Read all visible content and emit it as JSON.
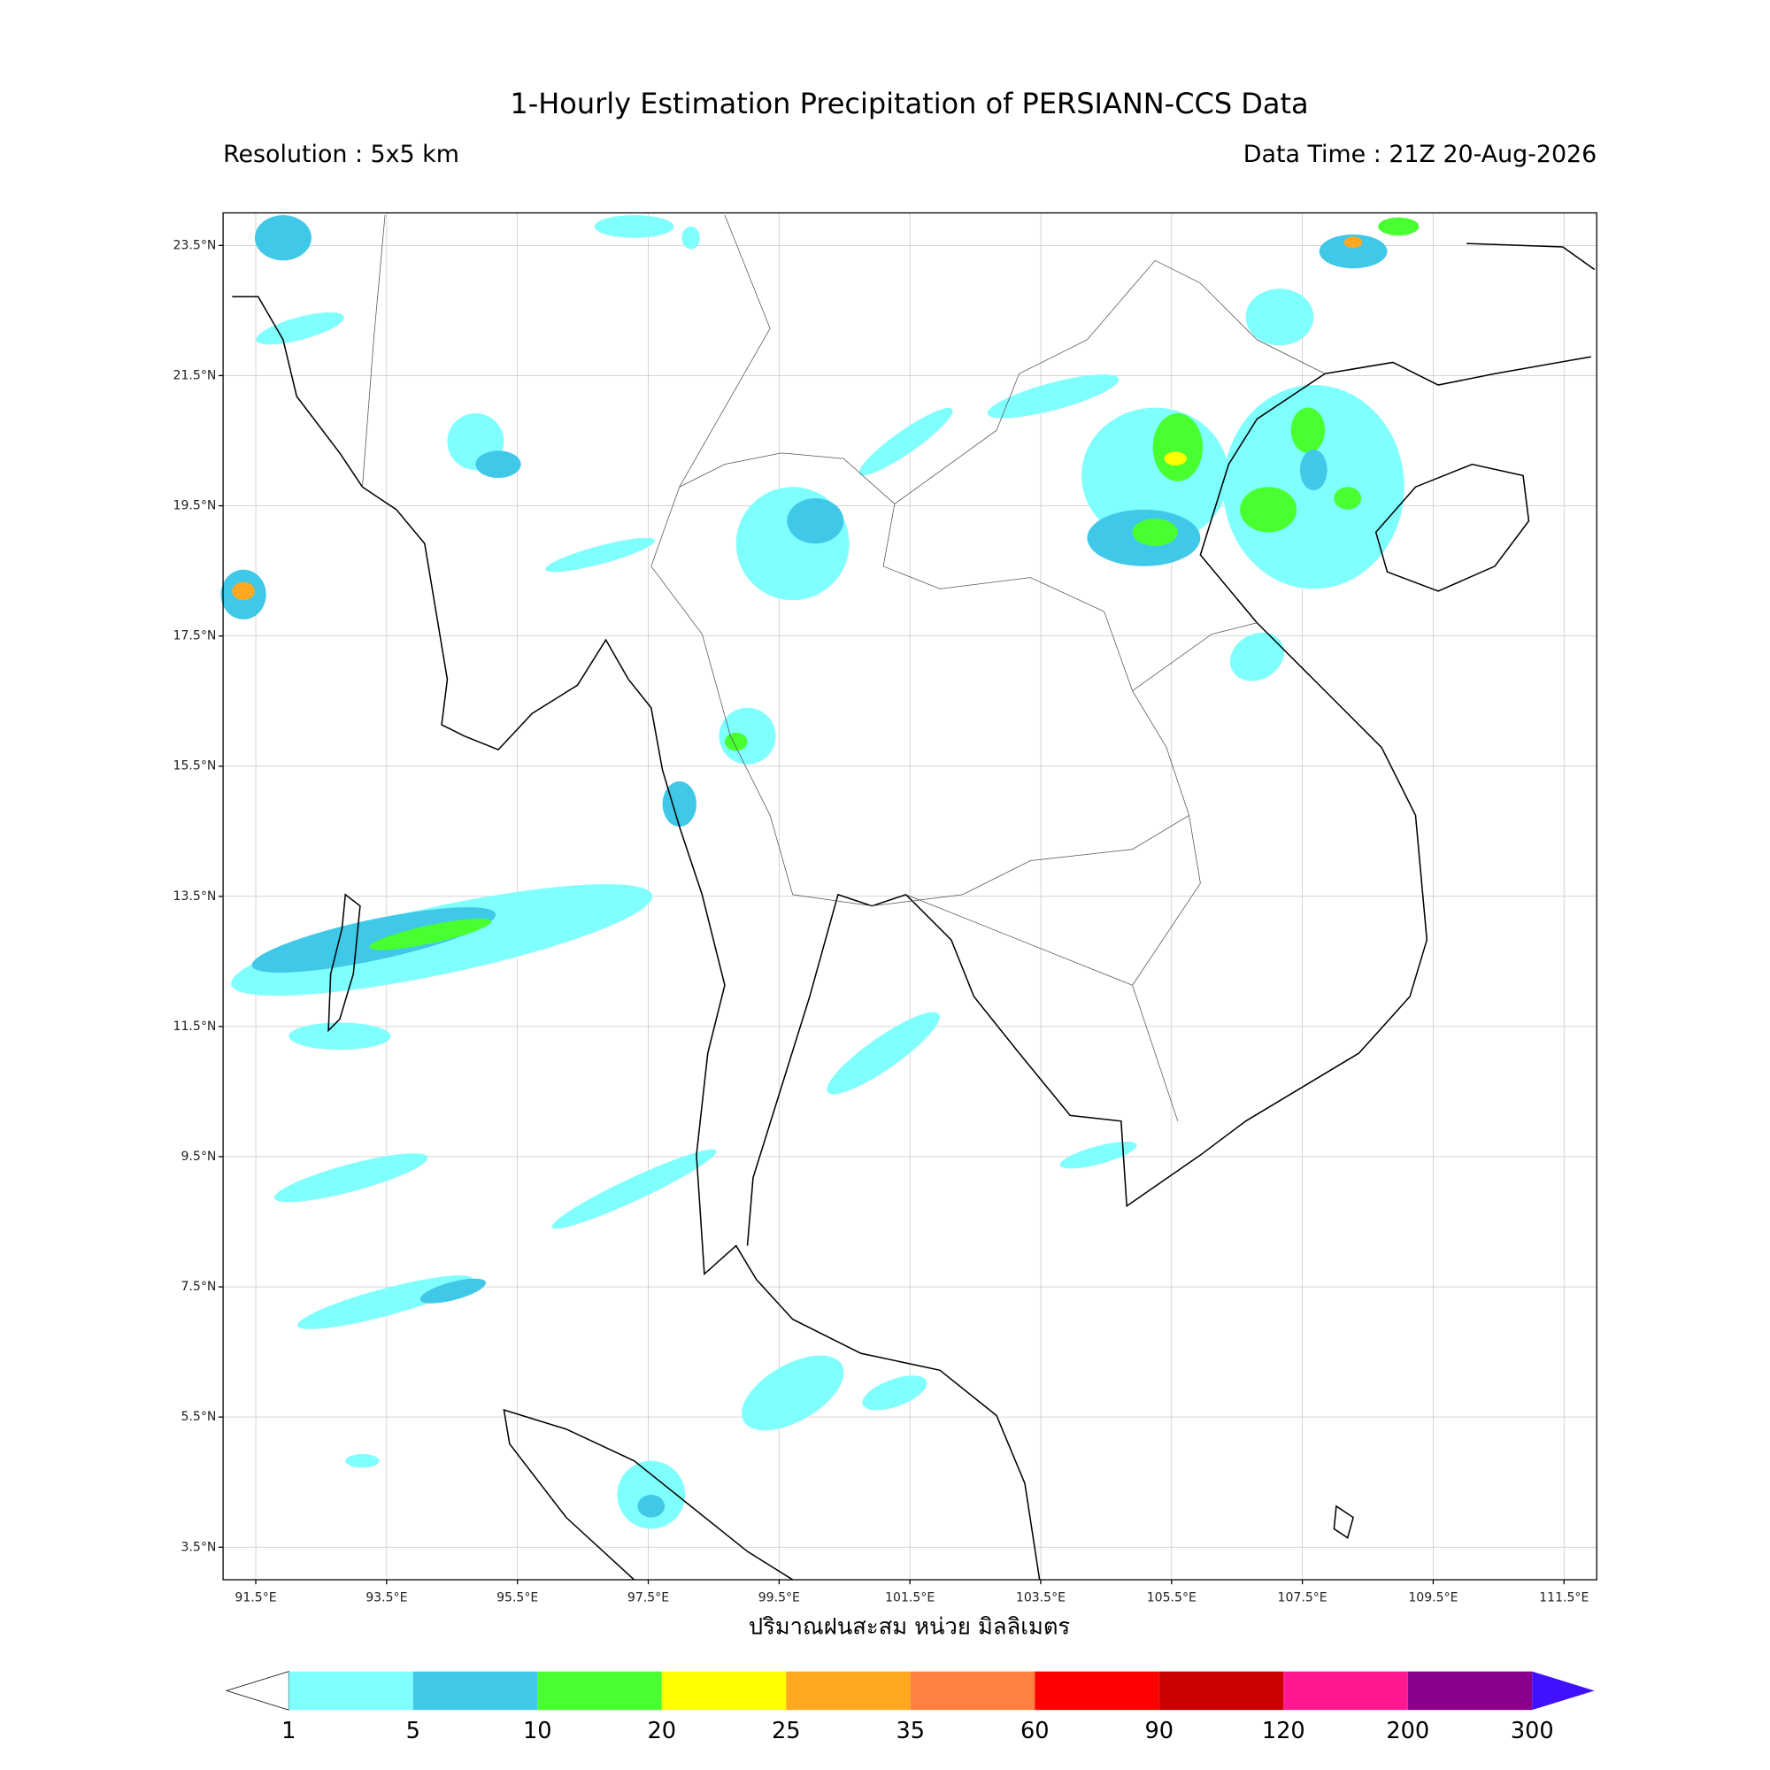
{
  "header": {
    "title": "1-Hourly Estimation Precipitation of PERSIANN-CCS Data",
    "resolution": "Resolution : 5x5 km",
    "data_time": "Data Time : 21Z 20-Aug-2026"
  },
  "map": {
    "lonlim": [
      91,
      112
    ],
    "latlim": [
      3,
      24
    ],
    "lon_ticks": [
      {
        "value": 91.5,
        "label": "91.5°E"
      },
      {
        "value": 93.5,
        "label": "93.5°E"
      },
      {
        "value": 95.5,
        "label": "95.5°E"
      },
      {
        "value": 97.5,
        "label": "97.5°E"
      },
      {
        "value": 99.5,
        "label": "99.5°E"
      },
      {
        "value": 101.5,
        "label": "101.5°E"
      },
      {
        "value": 103.5,
        "label": "103.5°E"
      },
      {
        "value": 105.5,
        "label": "105.5°E"
      },
      {
        "value": 107.5,
        "label": "107.5°E"
      },
      {
        "value": 109.5,
        "label": "109.5°E"
      },
      {
        "value": 111.5,
        "label": "111.5°E"
      }
    ],
    "lat_ticks": [
      {
        "value": 23.5,
        "label": "23.5°N"
      },
      {
        "value": 21.5,
        "label": "21.5°N"
      },
      {
        "value": 19.5,
        "label": "19.5°N"
      },
      {
        "value": 17.5,
        "label": "17.5°N"
      },
      {
        "value": 15.5,
        "label": "15.5°N"
      },
      {
        "value": 13.5,
        "label": "13.5°N"
      },
      {
        "value": 11.5,
        "label": "11.5°N"
      },
      {
        "value": 9.5,
        "label": "9.5°N"
      },
      {
        "value": 7.5,
        "label": "7.5°N"
      },
      {
        "value": 5.5,
        "label": "5.5°N"
      },
      {
        "value": 3.5,
        "label": "3.5°N"
      }
    ],
    "xlabel": "ปริมาณฝนสะสม หน่วย มิลลิเมตร"
  },
  "colorbar": {
    "levels": [
      1,
      5,
      10,
      20,
      25,
      35,
      60,
      90,
      120,
      200,
      300
    ],
    "colors": [
      "#80ffff",
      "#40c8e8",
      "#48ff30",
      "#ffff00",
      "#ffa820",
      "#ff8040",
      "#ff0000",
      "#cc0000",
      "#ff1890",
      "#8b008b"
    ],
    "over_color": "#4010ff"
  }
}
